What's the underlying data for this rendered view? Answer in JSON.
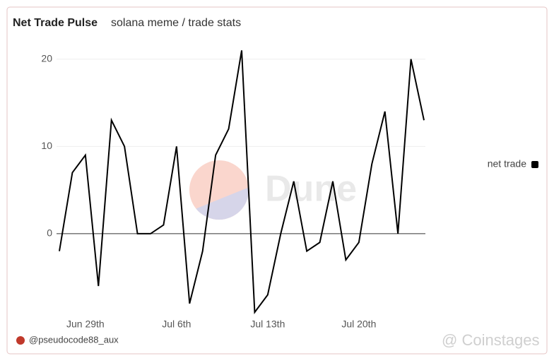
{
  "chart_data": {
    "type": "line",
    "title": "Net Trade Pulse",
    "subtitle": "solana meme / trade stats",
    "categories": [
      null,
      null,
      "Jun 29th",
      null,
      null,
      null,
      null,
      null,
      null,
      "Jul 6th",
      null,
      null,
      null,
      null,
      null,
      null,
      "Jul 13th",
      null,
      null,
      null,
      null,
      null,
      null,
      "Jul 20th",
      null,
      null,
      null,
      null,
      null
    ],
    "series": [
      {
        "name": "net trade",
        "color": "#000000",
        "values": [
          -2,
          7,
          9,
          -6,
          13,
          10,
          0,
          0,
          1,
          10,
          -8,
          -2,
          9,
          12,
          21,
          -9,
          -7,
          0,
          6,
          -2,
          -1,
          6,
          -3,
          -1,
          8,
          14,
          0,
          20,
          13
        ]
      }
    ],
    "ylim": [
      -10,
      22
    ],
    "yticks": [
      0,
      10,
      20
    ],
    "grid": true,
    "legend": "right",
    "watermark": "Dune",
    "author": "@pseudocode88_aux",
    "overlay": "@ Coinstages"
  }
}
